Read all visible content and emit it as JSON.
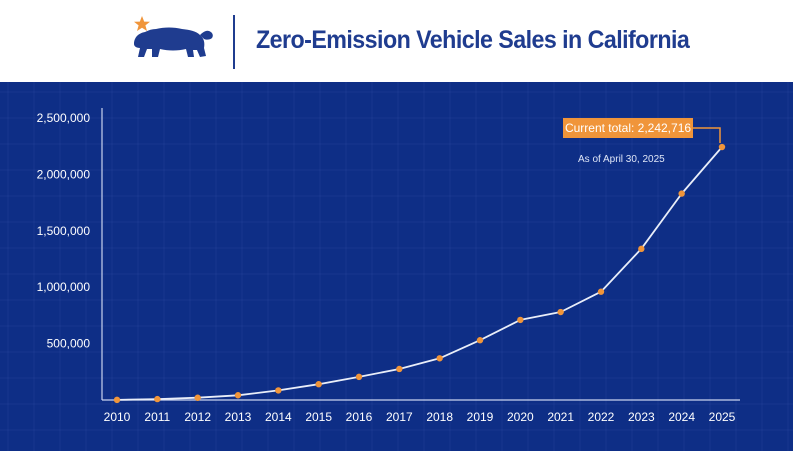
{
  "header": {
    "title": "Zero-Emission Vehicle Sales in California",
    "logo_icon": "california-bear-star-icon"
  },
  "colors": {
    "brand_blue": "#1f3c8f",
    "panel_bg": "#0e2e86",
    "accent_orange": "#f0953a",
    "line_white": "#e9eef9"
  },
  "chart_data": {
    "type": "line",
    "title": "Zero-Emission Vehicle Sales in California",
    "xlabel": "",
    "ylabel": "",
    "x": [
      "2010",
      "2011",
      "2012",
      "2013",
      "2014",
      "2015",
      "2016",
      "2017",
      "2018",
      "2019",
      "2020",
      "2021",
      "2022",
      "2023",
      "2024",
      "2025"
    ],
    "y_ticks": [
      "500,000",
      "1,000,000",
      "1,500,000",
      "2,000,000",
      "2,500,000"
    ],
    "y_tick_values": [
      500000,
      1000000,
      1500000,
      2000000,
      2500000
    ],
    "ylim": [
      0,
      2500000
    ],
    "grid": true,
    "series": [
      {
        "values": [
          1000,
          8000,
          20000,
          42000,
          85000,
          140000,
          205000,
          275000,
          370000,
          530000,
          710000,
          780000,
          960000,
          1340000,
          1830000,
          2242716
        ]
      }
    ],
    "annotation": {
      "label": "Current total: 2,242,716",
      "sublabel": "As of April 30, 2025"
    }
  }
}
